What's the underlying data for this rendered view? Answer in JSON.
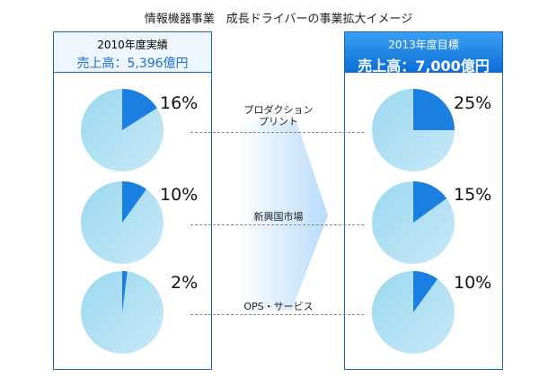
{
  "title": "情報機器事業　成長ドライバーの事業拡大イメージ",
  "left": {
    "year": "2010年度実績",
    "sales": "売上高：5,396億円"
  },
  "right": {
    "year": "2013年度目標",
    "sales": "売上高：7,000億円"
  },
  "categories": [
    {
      "line1": "プロダクション",
      "line2": "プリント"
    },
    {
      "line1": "新興国市場",
      "line2": ""
    },
    {
      "line1": "OPS・サービス",
      "line2": ""
    }
  ],
  "chart_data": {
    "type": "pie",
    "categories": [
      "プロダクションプリント",
      "新興国市場",
      "OPS・サービス"
    ],
    "series": [
      {
        "name": "2010年度実績",
        "values": [
          16,
          10,
          2
        ],
        "labels": [
          "16%",
          "10%",
          "2%"
        ]
      },
      {
        "name": "2013年度目標",
        "values": [
          25,
          15,
          10
        ],
        "labels": [
          "25%",
          "15%",
          "10%"
        ]
      }
    ]
  },
  "colors": {
    "slice": "#1a7fe0",
    "pie": "#a6dcf2",
    "border": "#1a66c8"
  }
}
